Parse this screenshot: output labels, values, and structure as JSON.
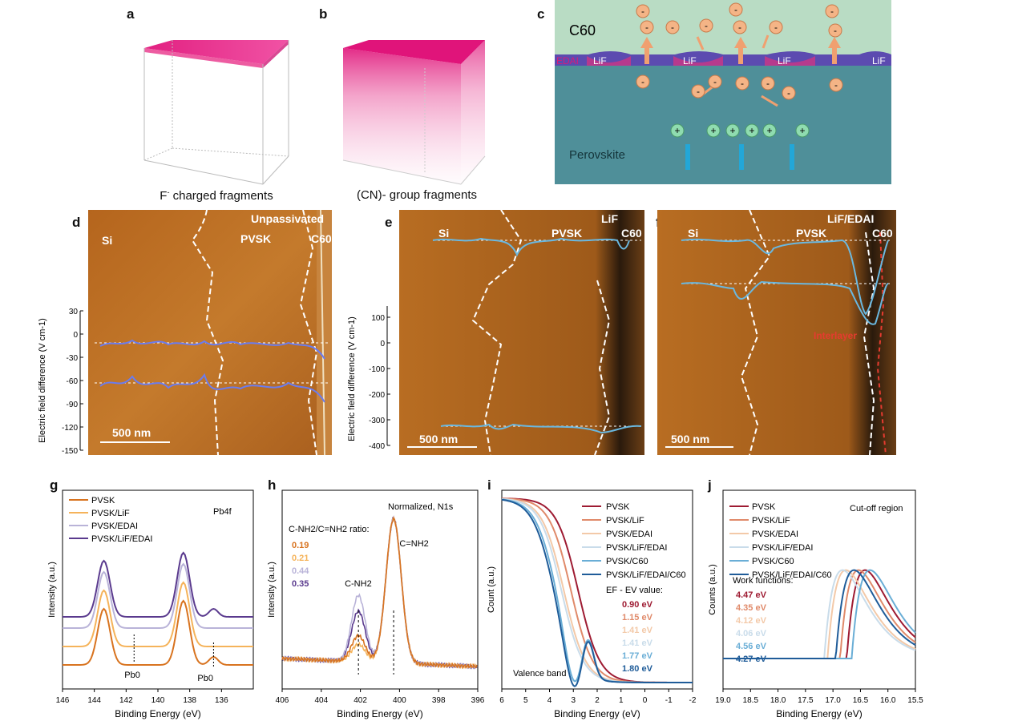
{
  "panels": {
    "a": {
      "letter": "a",
      "caption_main": "F",
      "caption_sup": "-",
      "caption_rest": " charged fragments"
    },
    "b": {
      "letter": "b",
      "caption": "(CN)- group fragments"
    },
    "c": {
      "letter": "c",
      "top_layer": "C60",
      "interface_labels": [
        "EDAI",
        "LiF",
        "LiF",
        "LiF",
        "LiF"
      ],
      "bottom_layer": "Perovskite",
      "neg_symbol": "-",
      "pos_symbol": "+"
    },
    "d": {
      "letter": "d",
      "title": "Unpassivated",
      "labels": [
        "Si",
        "PVSK",
        "C60"
      ],
      "scale": "500 nm",
      "ylabel": "Electric field difference (V cm-1)",
      "yticks": [
        "30",
        "0",
        "-30",
        "-60",
        "-90",
        "-120",
        "-150"
      ]
    },
    "e": {
      "letter": "e",
      "title": "LiF",
      "labels": [
        "Si",
        "PVSK",
        "C60"
      ],
      "scale": "500 nm",
      "ylabel": "Electric field difference (V cm-1)",
      "yticks": [
        "100",
        "0",
        "-100",
        "-200",
        "-300",
        "-400"
      ]
    },
    "f": {
      "letter": "f",
      "title": "LiF/EDAI",
      "labels": [
        "Si",
        "PVSK",
        "C60"
      ],
      "scale": "500 nm",
      "interlayer": "Interlayer"
    }
  },
  "chart_data": [
    {
      "id": "g",
      "type": "line",
      "xlabel": "Binding Energy (eV)",
      "ylabel": "Intensity (a.u.)",
      "xlim": [
        146,
        134
      ],
      "xticks": [
        146,
        144,
        142,
        140,
        138,
        136
      ],
      "annotation": "Pb4f",
      "peak_labels": [
        "Pb0",
        "Pb0"
      ],
      "series": [
        {
          "name": "PVSK",
          "color": "#d8731f"
        },
        {
          "name": "PVSK/LiF",
          "color": "#f5b35a"
        },
        {
          "name": "PVSK/EDAI",
          "color": "#b9b3d8"
        },
        {
          "name": "PVSK/LiF/EDAI",
          "color": "#5a3a8e"
        }
      ]
    },
    {
      "id": "h",
      "type": "line",
      "xlabel": "Binding Energy (eV)",
      "ylabel": "Intensity (a.u.)",
      "xlim": [
        406,
        396
      ],
      "xticks": [
        406,
        404,
        402,
        400,
        398,
        396
      ],
      "annotation": "Normalized, N1s",
      "ratio_title": "C-NH2/C=NH2 ratio:",
      "ratios": [
        {
          "value": "0.19",
          "color": "#d8731f"
        },
        {
          "value": "0.21",
          "color": "#f5b35a"
        },
        {
          "value": "0.44",
          "color": "#b9b3d8"
        },
        {
          "value": "0.35",
          "color": "#5a3a8e"
        }
      ],
      "peak_labels": [
        "C-NH2",
        "C=NH2"
      ]
    },
    {
      "id": "i",
      "type": "line",
      "xlabel": "Binding Energy (eV)",
      "ylabel": "Count (a.u.)",
      "xlim": [
        6,
        -2
      ],
      "xticks": [
        6,
        5,
        4,
        3,
        2,
        1,
        0,
        -1,
        -2
      ],
      "annotation": "Valence band",
      "value_title": "EF - EV value:",
      "series": [
        {
          "name": "PVSK",
          "color": "#9e1b32",
          "value": "0.90 eV"
        },
        {
          "name": "PVSK/LiF",
          "color": "#e08a6a",
          "value": "1.15 eV"
        },
        {
          "name": "PVSK/EDAI",
          "color": "#f3c9a8",
          "value": "1.41 eV"
        },
        {
          "name": "PVSK/LiF/EDAI",
          "color": "#c9dcea",
          "value": "1.41 eV"
        },
        {
          "name": "PVSK/C60",
          "color": "#6aaed6",
          "value": "1.77 eV"
        },
        {
          "name": "PVSK/LiF/EDAI/C60",
          "color": "#1f5c99",
          "value": "1.80 eV"
        }
      ]
    },
    {
      "id": "j",
      "type": "line",
      "xlabel": "Binding Energy (eV)",
      "ylabel": "Counts (a.u.)",
      "xlim": [
        19.0,
        15.5
      ],
      "xticks": [
        "19.0",
        "18.5",
        "18.0",
        "17.5",
        "17.0",
        "16.5",
        "16.0",
        "15.5"
      ],
      "annotation": "Cut-off region",
      "value_title": "Work functions:",
      "series": [
        {
          "name": "PVSK",
          "color": "#9e1b32",
          "value": "4.47 eV"
        },
        {
          "name": "PVSK/LiF",
          "color": "#e08a6a",
          "value": "4.35 eV"
        },
        {
          "name": "PVSK/EDAI",
          "color": "#f3c9a8",
          "value": "4.12 eV"
        },
        {
          "name": "PVSK/LiF/EDAI",
          "color": "#c9dcea",
          "value": "4.06 eV"
        },
        {
          "name": "PVSK/C60",
          "color": "#6aaed6",
          "value": "4.56 eV"
        },
        {
          "name": "PVSK/LiF/EDAI/C60",
          "color": "#1f5c99",
          "value": "4.27 eV"
        }
      ]
    }
  ]
}
